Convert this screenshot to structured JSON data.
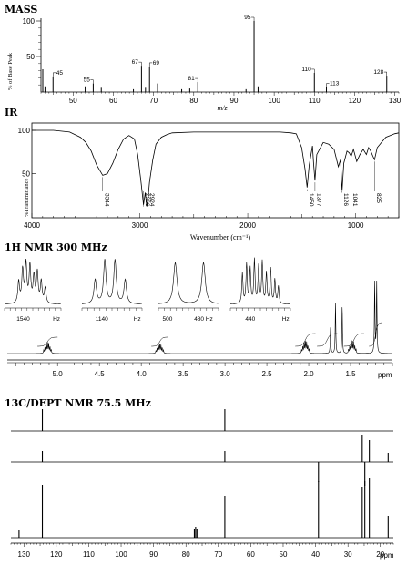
{
  "chart_data": [
    {
      "type": "bar",
      "title": "MASS",
      "ylabel": "% of Base Peak",
      "xlabel": "m/z",
      "xlim": [
        42,
        131
      ],
      "ylim": [
        0,
        100
      ],
      "x_ticks": [
        50,
        60,
        70,
        80,
        90,
        100,
        110,
        120,
        130
      ],
      "y_ticks": [
        50,
        100
      ],
      "peaks": [
        {
          "mz": 41,
          "intensity": 32
        },
        {
          "mz": 43,
          "intensity": 8
        },
        {
          "mz": 45,
          "intensity": 22
        },
        {
          "mz": 53,
          "intensity": 8
        },
        {
          "mz": 55,
          "intensity": 12
        },
        {
          "mz": 57,
          "intensity": 6
        },
        {
          "mz": 65,
          "intensity": 4
        },
        {
          "mz": 67,
          "intensity": 37
        },
        {
          "mz": 68,
          "intensity": 6
        },
        {
          "mz": 69,
          "intensity": 36
        },
        {
          "mz": 71,
          "intensity": 12
        },
        {
          "mz": 77,
          "intensity": 4
        },
        {
          "mz": 79,
          "intensity": 5
        },
        {
          "mz": 81,
          "intensity": 14
        },
        {
          "mz": 93,
          "intensity": 4
        },
        {
          "mz": 95,
          "intensity": 100
        },
        {
          "mz": 96,
          "intensity": 8
        },
        {
          "mz": 110,
          "intensity": 27
        },
        {
          "mz": 113,
          "intensity": 7
        },
        {
          "mz": 128,
          "intensity": 23
        }
      ],
      "labeled_peaks": [
        45,
        55,
        67,
        69,
        81,
        95,
        110,
        113,
        128
      ]
    },
    {
      "type": "line",
      "title": "IR",
      "ylabel": "%Transmittance",
      "xlabel": "Wavenumber (cm⁻¹)",
      "xlim": [
        4000,
        600
      ],
      "ylim": [
        0,
        100
      ],
      "x_ticks": [
        4000,
        3000,
        2000,
        1000
      ],
      "y_ticks": [
        50,
        100
      ],
      "annotations": [
        "3344",
        "2966",
        "2924",
        "1450",
        "1377",
        "1126",
        "1041",
        "825"
      ],
      "x": [
        4000,
        3800,
        3650,
        3550,
        3500,
        3450,
        3400,
        3344,
        3300,
        3250,
        3200,
        3150,
        3100,
        3050,
        3020,
        2990,
        2966,
        2950,
        2935,
        2924,
        2910,
        2880,
        2850,
        2800,
        2750,
        2700,
        2500,
        2200,
        2000,
        1800,
        1700,
        1600,
        1550,
        1500,
        1470,
        1450,
        1430,
        1400,
        1390,
        1377,
        1360,
        1300,
        1250,
        1200,
        1160,
        1140,
        1126,
        1110,
        1080,
        1060,
        1041,
        1020,
        990,
        960,
        930,
        900,
        880,
        860,
        840,
        825,
        800,
        760,
        720,
        680,
        640,
        600
      ],
      "y": [
        100,
        100,
        98,
        92,
        86,
        76,
        60,
        48,
        50,
        62,
        78,
        90,
        94,
        90,
        72,
        42,
        14,
        28,
        12,
        20,
        40,
        66,
        84,
        92,
        95,
        97,
        98,
        98,
        98,
        98,
        98,
        97,
        96,
        80,
        56,
        34,
        60,
        82,
        62,
        42,
        72,
        86,
        84,
        78,
        58,
        66,
        30,
        62,
        76,
        74,
        70,
        78,
        64,
        72,
        78,
        72,
        80,
        76,
        70,
        66,
        80,
        86,
        92,
        94,
        96,
        97
      ]
    },
    {
      "type": "line",
      "title": "1H NMR 300 MHz",
      "xlabel": "ppm",
      "xlim": [
        5.6,
        1.0
      ],
      "x_ticks": [
        5.0,
        4.5,
        4.0,
        3.5,
        3.0,
        2.5,
        2.0,
        1.5
      ],
      "peaks": [
        {
          "shift": 5.12,
          "height": 14,
          "multiplicity": "m"
        },
        {
          "shift": 3.78,
          "height": 12,
          "multiplicity": "m"
        },
        {
          "shift": 2.04,
          "height": 16,
          "multiplicity": "m"
        },
        {
          "shift": 1.74,
          "height": 36,
          "multiplicity": "s"
        },
        {
          "shift": 1.68,
          "height": 70,
          "multiplicity": "s"
        },
        {
          "shift": 1.6,
          "height": 66,
          "multiplicity": "s"
        },
        {
          "shift": 1.48,
          "height": 16,
          "multiplicity": "m"
        },
        {
          "shift": 1.2,
          "height": 100,
          "multiplicity": "d"
        }
      ],
      "insets": [
        {
          "ticks": [
            "1540",
            "Hz"
          ]
        },
        {
          "ticks": [
            "1140",
            "Hz"
          ]
        },
        {
          "ticks": [
            "500",
            "480 Hz"
          ]
        },
        {
          "ticks": [
            "440",
            "Hz"
          ]
        }
      ]
    },
    {
      "type": "bar",
      "title": "13C/DEPT NMR 75.5 MHz",
      "xlabel": "ppm",
      "xlim": [
        134,
        16
      ],
      "x_ticks": [
        130,
        120,
        110,
        100,
        90,
        80,
        70,
        60,
        50,
        40,
        30,
        20
      ],
      "dept90": [
        {
          "shift": 124.3,
          "height": 24
        },
        {
          "shift": 68.0,
          "height": 24
        }
      ],
      "dept135": [
        {
          "shift": 124.3,
          "height": 12
        },
        {
          "shift": 68.0,
          "height": 12
        },
        {
          "shift": 39.1,
          "height": -22
        },
        {
          "shift": 25.6,
          "height": 30
        },
        {
          "shift": 24.8,
          "height": -26
        },
        {
          "shift": 23.4,
          "height": 24
        },
        {
          "shift": 17.6,
          "height": 10
        }
      ],
      "broadband": [
        {
          "shift": 131.5,
          "height": 8
        },
        {
          "shift": 124.3,
          "height": 58
        },
        {
          "shift": 68.0,
          "height": 46
        },
        {
          "shift": 77.4,
          "height": 10
        },
        {
          "shift": 77.0,
          "height": 12
        },
        {
          "shift": 76.6,
          "height": 10
        },
        {
          "shift": 39.1,
          "height": 62
        },
        {
          "shift": 25.6,
          "height": 56
        },
        {
          "shift": 24.8,
          "height": 62
        },
        {
          "shift": 23.4,
          "height": 66
        },
        {
          "shift": 17.6,
          "height": 24
        }
      ]
    }
  ]
}
